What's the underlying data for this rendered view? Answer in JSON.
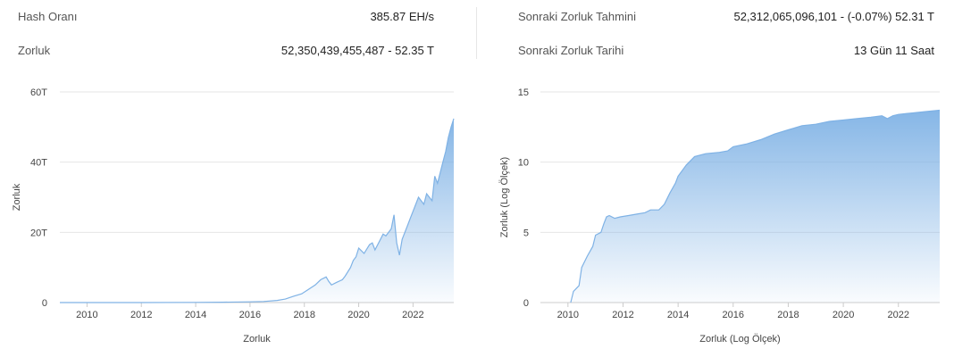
{
  "stats": {
    "hash_label": "Hash Oranı",
    "hash_value": "385.87 EH/s",
    "difficulty_label": "Zorluk",
    "difficulty_value": "52,350,439,455,487 - 52.35 T",
    "next_estimate_label": "Sonraki Zorluk Tahmini",
    "next_estimate_value": "52,312,065,096,101 - (-0.07%) 52.31 T",
    "next_date_label": "Sonraki Zorluk Tarihi",
    "next_date_value": "13 Gün 11 Saat"
  },
  "colors": {
    "line": "#7fb2e5",
    "fill_top": "#7fb2e5",
    "grid": "#e6e6e6"
  },
  "chart_data": [
    {
      "type": "area",
      "xlabel": "Zorluk",
      "ylabel": "Zorluk",
      "xlim": [
        2009,
        2023.5
      ],
      "ylim": [
        0,
        60
      ],
      "x_ticks": [
        2010,
        2012,
        2014,
        2016,
        2018,
        2020,
        2022
      ],
      "x_tick_labels": [
        "2010",
        "2012",
        "2014",
        "2016",
        "2018",
        "2020",
        "2022"
      ],
      "y_ticks": [
        0,
        20,
        40,
        60
      ],
      "y_tick_labels": [
        "0",
        "20T",
        "40T",
        "60T"
      ],
      "grid": true,
      "unit": "T",
      "x": [
        2009,
        2012,
        2014,
        2015,
        2016,
        2016.5,
        2017,
        2017.3,
        2017.6,
        2017.9,
        2018.1,
        2018.4,
        2018.6,
        2018.8,
        2018.9,
        2019.0,
        2019.2,
        2019.4,
        2019.5,
        2019.7,
        2019.8,
        2019.9,
        2020.0,
        2020.2,
        2020.4,
        2020.5,
        2020.6,
        2020.8,
        2020.9,
        2021.0,
        2021.2,
        2021.3,
        2021.4,
        2021.5,
        2021.6,
        2021.8,
        2021.9,
        2022.0,
        2022.2,
        2022.4,
        2022.5,
        2022.7,
        2022.8,
        2022.9,
        2023.0,
        2023.1,
        2023.2,
        2023.3,
        2023.4,
        2023.5
      ],
      "y": [
        0,
        0,
        0.05,
        0.1,
        0.2,
        0.3,
        0.6,
        1.0,
        1.8,
        2.5,
        3.5,
        5.0,
        6.5,
        7.3,
        6.0,
        5.0,
        5.8,
        6.5,
        7.5,
        10.0,
        12.0,
        13.0,
        15.5,
        14.0,
        16.5,
        17.0,
        15.0,
        18.0,
        19.5,
        19.0,
        21.0,
        25.0,
        17.0,
        13.5,
        18.0,
        22.0,
        24.0,
        26.0,
        30.0,
        28.0,
        31.0,
        29.0,
        36.0,
        34.0,
        37.0,
        40.0,
        43.0,
        47.0,
        50.0,
        52.4
      ]
    },
    {
      "type": "area",
      "xlabel": "Zorluk (Log Ölçek)",
      "ylabel": "Zorluk (Log Ölçek)",
      "xlim": [
        2009,
        2023.5
      ],
      "ylim": [
        0,
        15
      ],
      "x_ticks": [
        2010,
        2012,
        2014,
        2016,
        2018,
        2020,
        2022
      ],
      "x_tick_labels": [
        "2010",
        "2012",
        "2014",
        "2016",
        "2018",
        "2020",
        "2022"
      ],
      "y_ticks": [
        0,
        5,
        10,
        15
      ],
      "y_tick_labels": [
        "0",
        "5",
        "10",
        "15"
      ],
      "grid": true,
      "x": [
        2010.1,
        2010.2,
        2010.4,
        2010.5,
        2010.7,
        2010.9,
        2011.0,
        2011.2,
        2011.3,
        2011.4,
        2011.5,
        2011.7,
        2011.9,
        2012.2,
        2012.5,
        2012.8,
        2013.0,
        2013.3,
        2013.5,
        2013.7,
        2013.9,
        2014.0,
        2014.3,
        2014.6,
        2015.0,
        2015.5,
        2015.8,
        2016.0,
        2016.5,
        2017.0,
        2017.5,
        2018.0,
        2018.5,
        2019.0,
        2019.5,
        2020.0,
        2020.5,
        2021.0,
        2021.4,
        2021.6,
        2021.8,
        2022.0,
        2022.5,
        2023.0,
        2023.5
      ],
      "y": [
        0,
        0.8,
        1.2,
        2.5,
        3.3,
        4.0,
        4.8,
        5.0,
        5.6,
        6.1,
        6.2,
        6.0,
        6.1,
        6.2,
        6.3,
        6.4,
        6.6,
        6.6,
        7.0,
        7.8,
        8.5,
        9.0,
        9.8,
        10.4,
        10.6,
        10.7,
        10.8,
        11.1,
        11.3,
        11.6,
        12.0,
        12.3,
        12.6,
        12.7,
        12.9,
        13.0,
        13.1,
        13.2,
        13.3,
        13.1,
        13.3,
        13.4,
        13.5,
        13.6,
        13.7
      ]
    }
  ]
}
